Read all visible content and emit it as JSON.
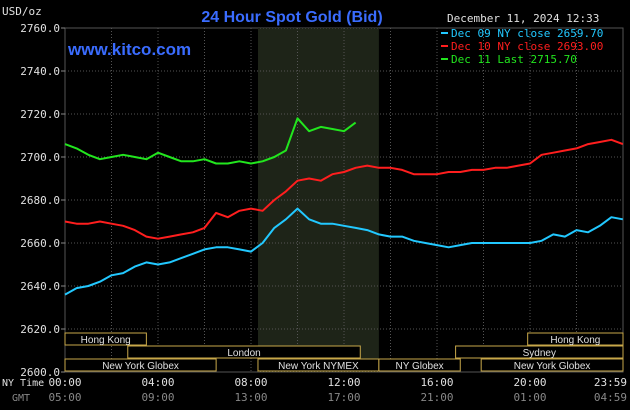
{
  "chart_data": {
    "type": "line",
    "title": "24 Hour Spot Gold (Bid)",
    "brand": "www.kitco.com",
    "datetime": "December 11, 2024 12:33",
    "ylabel": "USD/oz",
    "ylim": [
      2600,
      2760
    ],
    "y_ticks": [
      "2760.0",
      "2740.0",
      "2720.0",
      "2700.0",
      "2680.0",
      "2660.0",
      "2640.0",
      "2620.0",
      "2600.0"
    ],
    "xlim": [
      0,
      24
    ],
    "x_ticks_ny": [
      "00:00",
      "04:00",
      "08:00",
      "12:00",
      "16:00",
      "20:00",
      "23:59"
    ],
    "x_ticks_gmt": [
      "05:00",
      "09:00",
      "13:00",
      "17:00",
      "21:00",
      "01:00",
      "04:59"
    ],
    "row_label_ny": "NY Time",
    "row_label_gmt": "GMT",
    "grid": true,
    "legend_position": "top-right",
    "sessions": [
      {
        "label": "Hong Kong",
        "row": 0,
        "start": 0,
        "end": 3.5
      },
      {
        "label": "London",
        "row": 1,
        "start": 2.7,
        "end": 12.7
      },
      {
        "label": "New York Globex",
        "row": 2,
        "start": 0,
        "end": 6.5
      },
      {
        "label": "New York NYMEX",
        "row": 2,
        "start": 8.3,
        "end": 13.5
      },
      {
        "label": "NY Globex",
        "row": 2,
        "start": 13.5,
        "end": 17.0
      },
      {
        "label": "Hong Kong",
        "row": 0,
        "start": 19.9,
        "end": 24
      },
      {
        "label": "Sydney",
        "row": 1,
        "start": 16.8,
        "end": 24
      },
      {
        "label": "New York Globex",
        "row": 2,
        "start": 17.9,
        "end": 24
      }
    ],
    "highlight_range": [
      8.3,
      13.5
    ],
    "series": [
      {
        "name": "Dec 09 NY close 2659.70",
        "color": "#22c8ff",
        "x": [
          0,
          0.5,
          1,
          1.5,
          2,
          2.5,
          3,
          3.5,
          4,
          4.5,
          5,
          5.5,
          6,
          6.5,
          7,
          7.5,
          8,
          8.5,
          9,
          9.5,
          10,
          10.5,
          11,
          11.5,
          12,
          12.5,
          13,
          13.5,
          14,
          14.5,
          15,
          15.5,
          16,
          16.5,
          17,
          17.5,
          18,
          18.5,
          19,
          19.5,
          20,
          20.5,
          21,
          21.5,
          22,
          22.5,
          23,
          23.5,
          23.99
        ],
        "values": [
          2636,
          2639,
          2640,
          2642,
          2645,
          2646,
          2649,
          2651,
          2650,
          2651,
          2653,
          2655,
          2657,
          2658,
          2658,
          2657,
          2656,
          2660,
          2667,
          2671,
          2676,
          2671,
          2669,
          2669,
          2668,
          2667,
          2666,
          2664,
          2663,
          2663,
          2661,
          2660,
          2659,
          2658,
          2659,
          2660,
          2660,
          2660,
          2660,
          2660,
          2660,
          2661,
          2664,
          2663,
          2666,
          2665,
          2668,
          2672,
          2671
        ]
      },
      {
        "name": "Dec 10 NY close 2693.00",
        "color": "#ff1e1e",
        "x": [
          0,
          0.5,
          1,
          1.5,
          2,
          2.5,
          3,
          3.5,
          4,
          4.5,
          5,
          5.5,
          6,
          6.5,
          7,
          7.5,
          8,
          8.5,
          9,
          9.5,
          10,
          10.5,
          11,
          11.5,
          12,
          12.5,
          13,
          13.5,
          14,
          14.5,
          15,
          15.5,
          16,
          16.5,
          17,
          17.5,
          18,
          18.5,
          19,
          19.5,
          20,
          20.5,
          21,
          21.5,
          22,
          22.5,
          23,
          23.5,
          23.99
        ],
        "values": [
          2670,
          2669,
          2669,
          2670,
          2669,
          2668,
          2666,
          2663,
          2662,
          2663,
          2664,
          2665,
          2667,
          2674,
          2672,
          2675,
          2676,
          2675,
          2680,
          2684,
          2689,
          2690,
          2689,
          2692,
          2693,
          2695,
          2696,
          2695,
          2695,
          2694,
          2692,
          2692,
          2692,
          2693,
          2693,
          2694,
          2694,
          2695,
          2695,
          2696,
          2697,
          2701,
          2702,
          2703,
          2704,
          2706,
          2707,
          2708,
          2706
        ]
      },
      {
        "name": "Dec 11 Last 2715.70",
        "color": "#22e61e",
        "x": [
          0,
          0.5,
          1,
          1.5,
          2,
          2.5,
          3,
          3.5,
          4,
          4.5,
          5,
          5.5,
          6,
          6.5,
          7,
          7.5,
          8,
          8.5,
          9,
          9.5,
          10,
          10.5,
          11,
          11.5,
          12,
          12.5
        ],
        "values": [
          2706,
          2704,
          2701,
          2699,
          2700,
          2701,
          2700,
          2699,
          2702,
          2700,
          2698,
          2698,
          2699,
          2697,
          2697,
          2698,
          2697,
          2698,
          2700,
          2703,
          2718,
          2712,
          2714,
          2713,
          2712,
          2716
        ]
      }
    ]
  }
}
